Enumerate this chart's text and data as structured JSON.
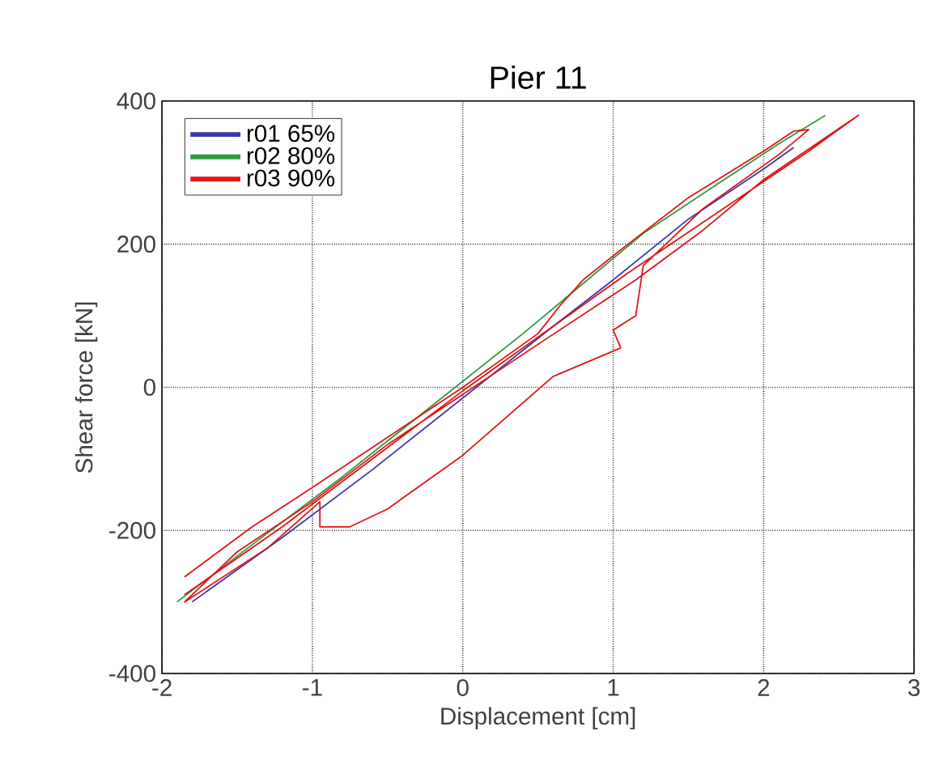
{
  "chart_data": {
    "type": "line",
    "title": "Pier 11",
    "xlabel": "Displacement [cm]",
    "ylabel": "Shear force [kN]",
    "xlim": [
      -2,
      3
    ],
    "ylim": [
      -400,
      400
    ],
    "xticks": [
      -2,
      -1,
      0,
      1,
      2,
      3
    ],
    "yticks": [
      -400,
      -200,
      0,
      200,
      400
    ],
    "grid": true,
    "legend": "top left",
    "series": [
      {
        "name": "r01 65%",
        "color": "#3838a8",
        "x": [
          -1.8,
          -1.2,
          -0.6,
          0.0,
          0.6,
          1.0,
          1.5,
          2.0,
          2.2
        ],
        "values": [
          -300,
          -210,
          -115,
          -15,
          85,
          150,
          235,
          305,
          335
        ]
      },
      {
        "name": "r02 80%",
        "color": "#2e9a3e",
        "x": [
          -1.9,
          -1.4,
          -0.8,
          -0.2,
          0.4,
          0.8,
          1.2,
          1.7,
          2.1,
          2.41
        ],
        "values": [
          -300,
          -220,
          -125,
          -25,
          75,
          145,
          215,
          285,
          340,
          380
        ]
      },
      {
        "name": "r03 90%",
        "color": "#dd1515",
        "x": [
          -1.85,
          -1.4,
          -1.0,
          -0.5,
          0.0,
          0.5,
          0.65,
          0.8,
          1.05,
          1.5,
          2.0,
          2.2,
          2.3,
          2.1,
          1.6,
          1.2,
          1.15,
          1.0,
          1.05,
          0.6,
          0.0,
          -0.5,
          -0.75,
          -0.95,
          -0.95,
          -1.3,
          -1.85,
          -1.5,
          -1.0,
          -0.5,
          0.0,
          0.5,
          1.15,
          1.6,
          2.0,
          2.63,
          2.3,
          1.7,
          1.1,
          0.5,
          0.0,
          -0.6,
          -1.2,
          -1.85
        ],
        "values": [
          -265,
          -195,
          -140,
          -70,
          0,
          75,
          115,
          150,
          192,
          265,
          330,
          358,
          360,
          325,
          250,
          170,
          100,
          80,
          55,
          15,
          -95,
          -170,
          -195,
          -195,
          -160,
          -225,
          -300,
          -230,
          -160,
          -80,
          -10,
          60,
          150,
          220,
          290,
          380,
          330,
          245,
          160,
          70,
          -5,
          -100,
          -195,
          -290
        ]
      }
    ]
  }
}
